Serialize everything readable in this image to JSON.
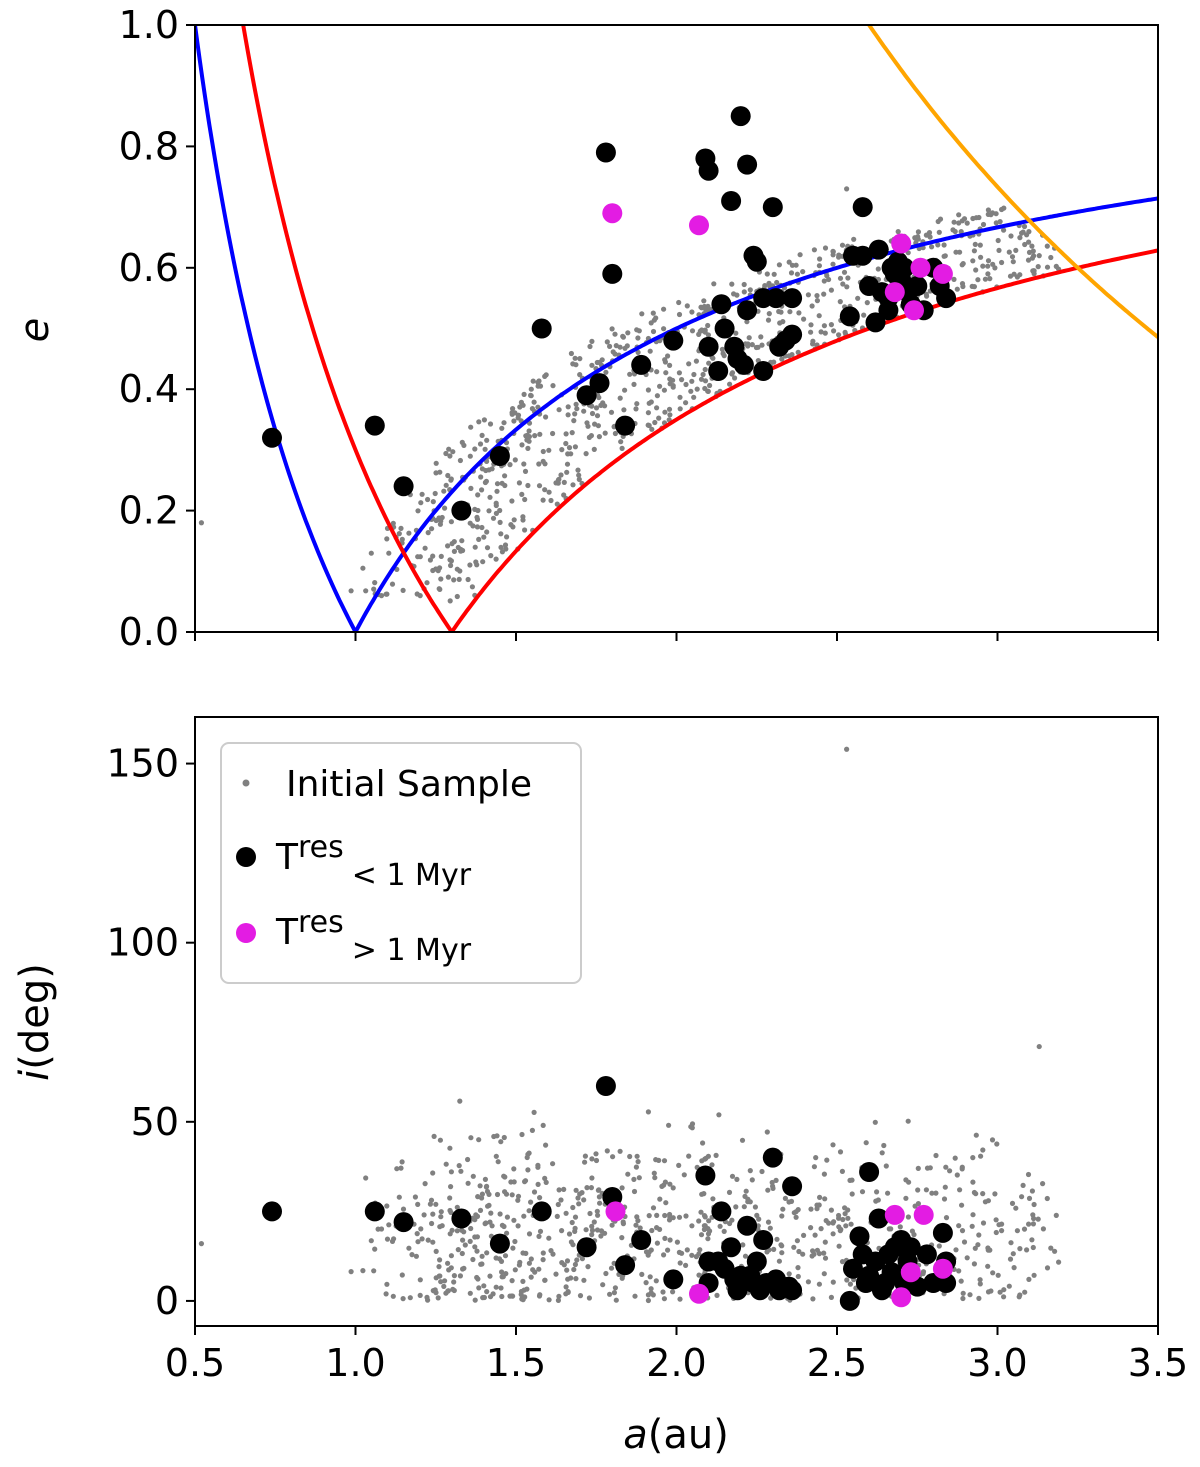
{
  "chart_data": [
    {
      "type": "scatter",
      "panel": "top",
      "xlabel": "",
      "ylabel": "e",
      "xlim": [
        0.5,
        3.5
      ],
      "ylim": [
        0.0,
        1.0
      ],
      "x_ticks": [
        0.5,
        1.0,
        1.5,
        2.0,
        2.5,
        3.0,
        3.5
      ],
      "y_ticks": [
        0.0,
        0.2,
        0.4,
        0.6,
        0.8,
        1.0
      ],
      "y_tick_labels": [
        "0.0",
        "0.2",
        "0.4",
        "0.6",
        "0.8",
        "1.0"
      ],
      "curves": [
        {
          "color": "#0000ff",
          "type": "perihelion",
          "q": 1.0
        },
        {
          "color": "#0000ff",
          "type": "aphelion",
          "Q": 1.0
        },
        {
          "color": "#ff0000",
          "type": "perihelion",
          "q": 1.3
        },
        {
          "color": "#ff0000",
          "type": "aphelion",
          "Q": 1.3
        },
        {
          "color": "#ffa500",
          "type": "aphelion",
          "Q": 5.2
        }
      ],
      "series": [
        {
          "name": "T_res < 1 Myr",
          "color": "#000000",
          "points": [
            [
              0.74,
              0.32
            ],
            [
              1.06,
              0.34
            ],
            [
              1.15,
              0.24
            ],
            [
              1.33,
              0.2
            ],
            [
              1.45,
              0.29
            ],
            [
              1.58,
              0.5
            ],
            [
              1.72,
              0.39
            ],
            [
              1.76,
              0.41
            ],
            [
              1.78,
              0.79
            ],
            [
              1.8,
              0.59
            ],
            [
              1.84,
              0.34
            ],
            [
              1.89,
              0.44
            ],
            [
              1.99,
              0.48
            ],
            [
              2.09,
              0.78
            ],
            [
              2.1,
              0.76
            ],
            [
              2.1,
              0.47
            ],
            [
              2.13,
              0.43
            ],
            [
              2.14,
              0.54
            ],
            [
              2.15,
              0.5
            ],
            [
              2.17,
              0.71
            ],
            [
              2.18,
              0.47
            ],
            [
              2.19,
              0.45
            ],
            [
              2.2,
              0.85
            ],
            [
              2.22,
              0.77
            ],
            [
              2.22,
              0.53
            ],
            [
              2.21,
              0.44
            ],
            [
              2.24,
              0.62
            ],
            [
              2.25,
              0.61
            ],
            [
              2.27,
              0.55
            ],
            [
              2.27,
              0.43
            ],
            [
              2.3,
              0.7
            ],
            [
              2.31,
              0.55
            ],
            [
              2.32,
              0.47
            ],
            [
              2.34,
              0.48
            ],
            [
              2.36,
              0.55
            ],
            [
              2.36,
              0.49
            ],
            [
              2.55,
              0.62
            ],
            [
              2.58,
              0.7
            ],
            [
              2.58,
              0.62
            ],
            [
              2.6,
              0.57
            ],
            [
              2.62,
              0.51
            ],
            [
              2.63,
              0.63
            ],
            [
              2.64,
              0.56
            ],
            [
              2.66,
              0.55
            ],
            [
              2.66,
              0.53
            ],
            [
              2.67,
              0.6
            ],
            [
              2.68,
              0.59
            ],
            [
              2.7,
              0.58
            ],
            [
              2.71,
              0.6
            ],
            [
              2.72,
              0.56
            ],
            [
              2.73,
              0.54
            ],
            [
              2.75,
              0.57
            ],
            [
              2.77,
              0.53
            ],
            [
              2.8,
              0.6
            ],
            [
              2.82,
              0.57
            ],
            [
              2.84,
              0.55
            ],
            [
              2.54,
              0.52
            ],
            [
              2.69,
              0.61
            ]
          ]
        },
        {
          "name": "T_res > 1 Myr",
          "color": "#e31ce3",
          "points": [
            [
              1.8,
              0.69
            ],
            [
              2.07,
              0.67
            ],
            [
              2.68,
              0.56
            ],
            [
              2.7,
              0.64
            ],
            [
              2.74,
              0.53
            ],
            [
              2.76,
              0.6
            ],
            [
              2.83,
              0.59
            ]
          ]
        }
      ]
    },
    {
      "type": "scatter",
      "panel": "bottom",
      "xlabel": "a(au)",
      "ylabel": "i(deg)",
      "xlim": [
        0.5,
        3.5
      ],
      "ylim": [
        -7,
        163
      ],
      "x_ticks": [
        0.5,
        1.0,
        1.5,
        2.0,
        2.5,
        3.0,
        3.5
      ],
      "x_tick_labels": [
        "0.5",
        "1.0",
        "1.5",
        "2.0",
        "2.5",
        "3.0",
        "3.5"
      ],
      "y_ticks": [
        0,
        50,
        100,
        150
      ],
      "y_tick_labels": [
        "0",
        "50",
        "100",
        "150"
      ],
      "legend": {
        "placement": "upper-left",
        "entries": [
          {
            "label": "Initial Sample",
            "color": "#808080",
            "marker": "small"
          },
          {
            "label_main": "T",
            "label_sub": "res",
            "label_rest": "< 1 Myr",
            "color": "#000000",
            "marker": "large"
          },
          {
            "label_main": "T",
            "label_sub": "res",
            "label_rest": "> 1 Myr",
            "color": "#e31ce3",
            "marker": "large"
          }
        ]
      },
      "series": [
        {
          "name": "T_res < 1 Myr",
          "color": "#000000",
          "points": [
            [
              0.74,
              25
            ],
            [
              1.06,
              25
            ],
            [
              1.15,
              22
            ],
            [
              1.33,
              23
            ],
            [
              1.45,
              16
            ],
            [
              1.58,
              25
            ],
            [
              1.72,
              15
            ],
            [
              1.78,
              60
            ],
            [
              1.8,
              29
            ],
            [
              1.84,
              10
            ],
            [
              1.89,
              17
            ],
            [
              1.99,
              6
            ],
            [
              2.09,
              35
            ],
            [
              2.1,
              11
            ],
            [
              2.1,
              5
            ],
            [
              2.13,
              11
            ],
            [
              2.14,
              25
            ],
            [
              2.15,
              9
            ],
            [
              2.17,
              15
            ],
            [
              2.18,
              6
            ],
            [
              2.19,
              3
            ],
            [
              2.2,
              7
            ],
            [
              2.22,
              21
            ],
            [
              2.23,
              7
            ],
            [
              2.24,
              5
            ],
            [
              2.25,
              11
            ],
            [
              2.26,
              3
            ],
            [
              2.27,
              17
            ],
            [
              2.28,
              5
            ],
            [
              2.3,
              40
            ],
            [
              2.31,
              6
            ],
            [
              2.32,
              3
            ],
            [
              2.33,
              4
            ],
            [
              2.35,
              4
            ],
            [
              2.36,
              32
            ],
            [
              2.36,
              3
            ],
            [
              2.55,
              9
            ],
            [
              2.57,
              18
            ],
            [
              2.58,
              13
            ],
            [
              2.59,
              5
            ],
            [
              2.6,
              36
            ],
            [
              2.6,
              7
            ],
            [
              2.62,
              11
            ],
            [
              2.63,
              23
            ],
            [
              2.64,
              3
            ],
            [
              2.65,
              5
            ],
            [
              2.66,
              13
            ],
            [
              2.67,
              8
            ],
            [
              2.68,
              15
            ],
            [
              2.7,
              17
            ],
            [
              2.71,
              5
            ],
            [
              2.72,
              11
            ],
            [
              2.73,
              15
            ],
            [
              2.75,
              4
            ],
            [
              2.78,
              13
            ],
            [
              2.8,
              5
            ],
            [
              2.83,
              19
            ],
            [
              2.84,
              11
            ],
            [
              2.84,
              5
            ],
            [
              2.54,
              0
            ]
          ]
        },
        {
          "name": "T_res > 1 Myr",
          "color": "#e31ce3",
          "points": [
            [
              1.81,
              25
            ],
            [
              2.07,
              2
            ],
            [
              2.68,
              24
            ],
            [
              2.7,
              1
            ],
            [
              2.73,
              8
            ],
            [
              2.77,
              24
            ],
            [
              2.83,
              9
            ]
          ]
        }
      ]
    }
  ],
  "initial_sample": {
    "name": "Initial Sample",
    "color": "#808080",
    "count": 850,
    "e_bounds": {
      "q_min": 0.9,
      "q_max": 1.3,
      "Q_max": 5.2
    },
    "outliers": [
      [
        2.53,
        0.73,
        154
      ],
      [
        3.13,
        0.62,
        71
      ],
      [
        0.52,
        0.18,
        16
      ]
    ]
  }
}
